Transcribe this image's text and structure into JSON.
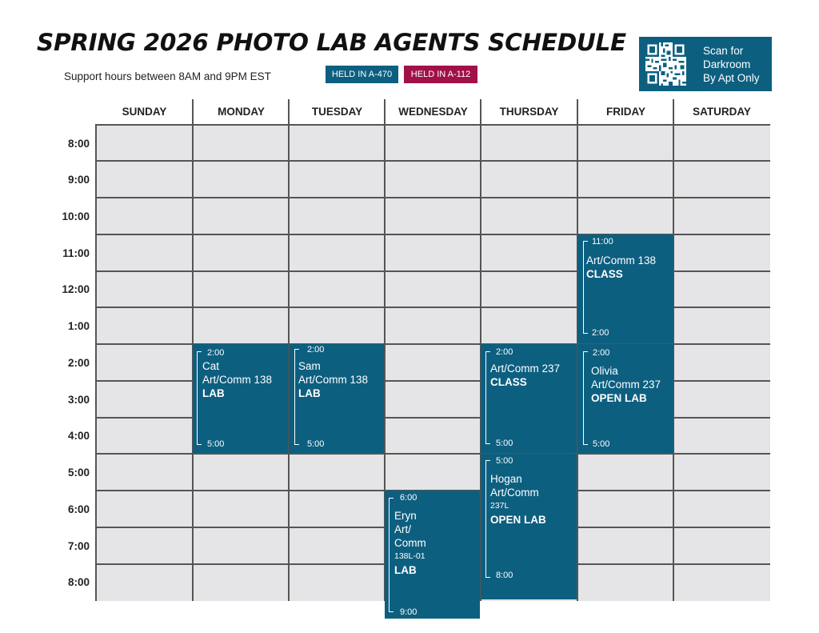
{
  "header": {
    "title": "SPRING 2026 PHOTO LAB AGENTS SCHEDULE",
    "subtitle": "Support hours between 8AM and 9PM EST",
    "badges": [
      "HELD IN A-470",
      "HELD IN A-112"
    ],
    "qr_text": [
      "Scan for",
      "Darkroom",
      "By Apt Only"
    ]
  },
  "colors": {
    "room_a470": "#0d5f80",
    "room_a112": "#a11148",
    "grid_bg": "#e5e5e7"
  },
  "days": [
    "SUNDAY",
    "MONDAY",
    "TUESDAY",
    "WEDNESDAY",
    "THURSDAY",
    "FRIDAY",
    "SATURDAY"
  ],
  "times": [
    "8:00",
    "9:00",
    "10:00",
    "11:00",
    "12:00",
    "1:00",
    "2:00",
    "3:00",
    "4:00",
    "5:00",
    "6:00",
    "7:00",
    "8:00"
  ],
  "events": [
    {
      "start": "11:00",
      "end": "2:00",
      "line1": "Art/Comm 138",
      "kind": "CLASS"
    },
    {
      "start": "2:00",
      "end": "5:00",
      "name": "Cat",
      "course": "Art/Comm 138",
      "kind": "LAB"
    },
    {
      "start": "2:00",
      "end": "5:00",
      "name": "Sam",
      "course": "Art/Comm 138",
      "kind": "LAB"
    },
    {
      "start": "2:00",
      "end": "5:00",
      "course": "Art/Comm 237",
      "kind": "CLASS"
    },
    {
      "start": "2:00",
      "end": "5:00",
      "name": "Olivia",
      "course": "Art/Comm 237",
      "kind": "OPEN LAB"
    },
    {
      "start": "5:00",
      "end": "8:00",
      "name": "Hogan",
      "course_a": "Art/Comm",
      "course_b": "237L",
      "kind": "OPEN LAB"
    },
    {
      "start": "6:00",
      "end": "9:00",
      "name": "Eryn",
      "course_a": "Art/",
      "course_b": "Comm",
      "course_c": "138L-01",
      "kind": "LAB"
    }
  ]
}
